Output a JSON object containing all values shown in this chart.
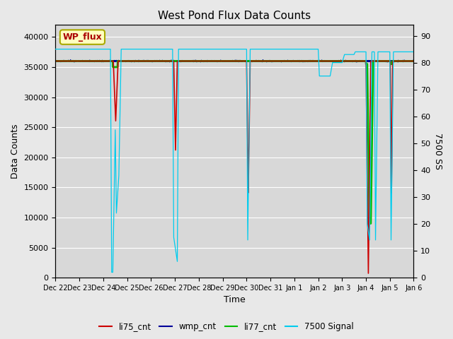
{
  "title": "West Pond Flux Data Counts",
  "ylabel_left": "Data Counts",
  "ylabel_right": "7500 SS",
  "xlabel": "Time",
  "legend_label": "WP_flux",
  "ylim_left": [
    0,
    42000
  ],
  "ylim_right": [
    0,
    94
  ],
  "bg_color": "#d8d8d8",
  "grid_color": "#ffffff",
  "series_colors": {
    "li75_cnt": "#cc0000",
    "wmp_cnt": "#000099",
    "li77_cnt": "#00bb00",
    "signal7500": "#00ccee"
  },
  "yticks_left": [
    0,
    5000,
    10000,
    15000,
    20000,
    25000,
    30000,
    35000,
    40000
  ],
  "yticks_right": [
    0,
    10,
    20,
    30,
    40,
    50,
    60,
    70,
    80,
    90
  ],
  "xtick_labels": [
    "Dec 22",
    "Dec 23",
    "Dec 24",
    "Dec 25",
    "Dec 26",
    "Dec 27",
    "Dec 28",
    "Dec 29",
    "Dec 30",
    "Dec 31",
    "Jan 1",
    "Jan 2",
    "Jan 3",
    "Jan 4",
    "Jan 5",
    "Jan 6"
  ],
  "figsize": [
    6.4,
    4.8
  ],
  "dpi": 100
}
